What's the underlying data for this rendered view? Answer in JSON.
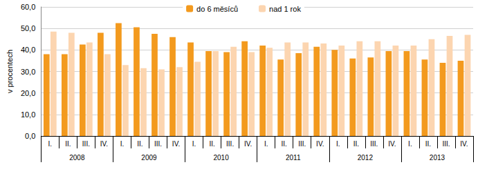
{
  "chart_data": {
    "type": "bar",
    "y_label": "v procentech",
    "categories": [
      "I.",
      "II.",
      "III.",
      "IV.",
      "I.",
      "II.",
      "III.",
      "IV.",
      "I.",
      "II.",
      "III.",
      "IV.",
      "I.",
      "II.",
      "III.",
      "IV.",
      "I.",
      "II.",
      "III.",
      "IV.",
      "I.",
      "II.",
      "III.",
      "IV."
    ],
    "years": [
      "2008",
      "2009",
      "2010",
      "2011",
      "2012",
      "2013"
    ],
    "series": [
      {
        "name": "do 6 měsíců",
        "color": "#f39a1e",
        "values": [
          38,
          38,
          42.5,
          48,
          52.5,
          50.5,
          47.5,
          46,
          43.5,
          39.5,
          39,
          44,
          42,
          35.5,
          38.5,
          41.5,
          40,
          36,
          36.5,
          39.5,
          39.5,
          35.5,
          34,
          35
        ]
      },
      {
        "name": "nad 1 rok",
        "color": "#fcd5b0",
        "values": [
          48.5,
          48,
          43.5,
          38,
          33,
          31.5,
          31,
          32,
          34.5,
          39.5,
          41.5,
          39,
          41,
          43.5,
          43.5,
          43,
          42,
          44,
          44,
          42,
          42,
          45,
          46.5,
          47
        ]
      }
    ],
    "ylim": [
      0,
      60
    ],
    "yticks": [
      {
        "value": 0,
        "label": "0,0"
      },
      {
        "value": 10,
        "label": "10,0"
      },
      {
        "value": 20,
        "label": "20,0"
      },
      {
        "value": 30,
        "label": "30,0"
      },
      {
        "value": 40,
        "label": "40,0"
      },
      {
        "value": 50,
        "label": "50,0"
      },
      {
        "value": 60,
        "label": "60,0"
      }
    ],
    "grid": true,
    "legend": "top"
  }
}
